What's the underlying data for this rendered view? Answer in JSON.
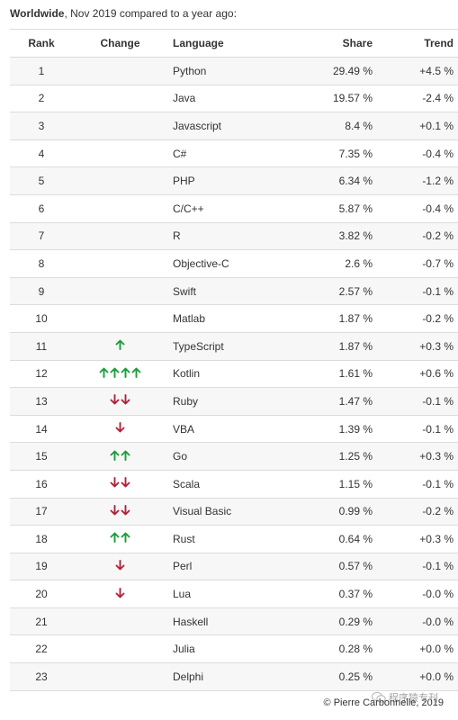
{
  "caption": {
    "bold": "Worldwide",
    "rest": ", Nov 2019 compared to a year ago:"
  },
  "headers": {
    "rank": "Rank",
    "change": "Change",
    "language": "Language",
    "share": "Share",
    "trend": "Trend"
  },
  "colors": {
    "up": "#1a9e3a",
    "down": "#b0243a"
  },
  "rows": [
    {
      "rank": "1",
      "change": "",
      "language": "Python",
      "share": "29.49 %",
      "trend": "+4.5 %"
    },
    {
      "rank": "2",
      "change": "",
      "language": "Java",
      "share": "19.57 %",
      "trend": "-2.4 %"
    },
    {
      "rank": "3",
      "change": "",
      "language": "Javascript",
      "share": "8.4 %",
      "trend": "+0.1 %"
    },
    {
      "rank": "4",
      "change": "",
      "language": "C#",
      "share": "7.35 %",
      "trend": "-0.4 %"
    },
    {
      "rank": "5",
      "change": "",
      "language": "PHP",
      "share": "6.34 %",
      "trend": "-1.2 %"
    },
    {
      "rank": "6",
      "change": "",
      "language": "C/C++",
      "share": "5.87 %",
      "trend": "-0.4 %"
    },
    {
      "rank": "7",
      "change": "",
      "language": "R",
      "share": "3.82 %",
      "trend": "-0.2 %"
    },
    {
      "rank": "8",
      "change": "",
      "language": "Objective-C",
      "share": "2.6 %",
      "trend": "-0.7 %"
    },
    {
      "rank": "9",
      "change": "",
      "language": "Swift",
      "share": "2.57 %",
      "trend": "-0.1 %"
    },
    {
      "rank": "10",
      "change": "",
      "language": "Matlab",
      "share": "1.87 %",
      "trend": "-0.2 %"
    },
    {
      "rank": "11",
      "change": "up-1",
      "language": "TypeScript",
      "share": "1.87 %",
      "trend": "+0.3 %"
    },
    {
      "rank": "12",
      "change": "up-4",
      "language": "Kotlin",
      "share": "1.61 %",
      "trend": "+0.6 %"
    },
    {
      "rank": "13",
      "change": "down-2",
      "language": "Ruby",
      "share": "1.47 %",
      "trend": "-0.1 %"
    },
    {
      "rank": "14",
      "change": "down-1",
      "language": "VBA",
      "share": "1.39 %",
      "trend": "-0.1 %"
    },
    {
      "rank": "15",
      "change": "up-2",
      "language": "Go",
      "share": "1.25 %",
      "trend": "+0.3 %"
    },
    {
      "rank": "16",
      "change": "down-2",
      "language": "Scala",
      "share": "1.15 %",
      "trend": "-0.1 %"
    },
    {
      "rank": "17",
      "change": "down-2",
      "language": "Visual Basic",
      "share": "0.99 %",
      "trend": "-0.2 %"
    },
    {
      "rank": "18",
      "change": "up-2",
      "language": "Rust",
      "share": "0.64 %",
      "trend": "+0.3 %"
    },
    {
      "rank": "19",
      "change": "down-1",
      "language": "Perl",
      "share": "0.57 %",
      "trend": "-0.1 %"
    },
    {
      "rank": "20",
      "change": "down-1",
      "language": "Lua",
      "share": "0.37 %",
      "trend": "-0.0 %"
    },
    {
      "rank": "21",
      "change": "",
      "language": "Haskell",
      "share": "0.29 %",
      "trend": "-0.0 %"
    },
    {
      "rank": "22",
      "change": "",
      "language": "Julia",
      "share": "0.28 %",
      "trend": "+0.0 %"
    },
    {
      "rank": "23",
      "change": "",
      "language": "Delphi",
      "share": "0.25 %",
      "trend": "+0.0 %"
    }
  ],
  "footer": "© Pierre Carbonnelle, 2019",
  "watermark": "程序猿专刊"
}
